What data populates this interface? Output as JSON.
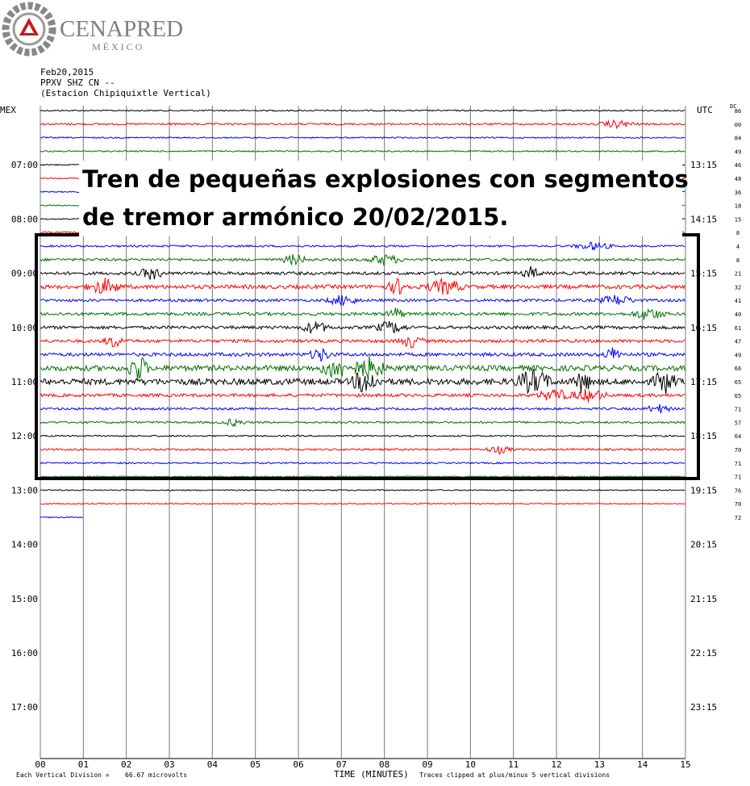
{
  "logo": {
    "name": "CENAPRED",
    "country": "MÉXICO"
  },
  "header": {
    "date": "Feb20,2015",
    "station_code": "PPXV SHZ CN --",
    "station_name": "(Estacion Chipiquixtle Vertical)"
  },
  "annotation": {
    "line1": "Tren de pequeñas explosiones con segmentos",
    "line2": "de tremor armónico 20/02/2015."
  },
  "chart_data": {
    "type": "line",
    "title": "",
    "left_axis_label": "MEX",
    "right_axis_label": "UTC",
    "dc_label": "DC",
    "x_axis_label": "TIME (MINUTES)",
    "xlim": [
      0,
      15
    ],
    "x_ticks": [
      "00",
      "01",
      "02",
      "03",
      "04",
      "05",
      "06",
      "07",
      "08",
      "09",
      "10",
      "11",
      "12",
      "13",
      "14",
      "15"
    ],
    "left_hour_labels": [
      "07:00",
      "08:00",
      "09:00",
      "10:00",
      "11:00",
      "12:00",
      "13:00",
      "14:00",
      "15:00",
      "16:00",
      "17:00"
    ],
    "right_hour_labels": [
      "13:15",
      "14:15",
      "15:15",
      "16:15",
      "17:15",
      "18:15",
      "19:15",
      "20:15",
      "21:15",
      "22:15",
      "23:15"
    ],
    "dc_values": [
      "86",
      "00",
      "84",
      "49",
      "46",
      "48",
      "36",
      "18",
      "15",
      "8",
      "4",
      "8",
      "21",
      "32",
      "41",
      "40",
      "61",
      "47",
      "49",
      "66",
      "65",
      "65",
      "71",
      "57",
      "64",
      "70",
      "71",
      "71",
      "76",
      "70",
      "72"
    ],
    "trace_colors": [
      "#000000",
      "#ff0000",
      "#0000ff",
      "#007000"
    ],
    "rows_per_hour": 4,
    "minutes_per_row": 15,
    "highlight_rows": [
      9,
      27
    ],
    "trace_amplitude_level": [
      0.35,
      0.5,
      0.35,
      0.35,
      0.3,
      0.3,
      0.3,
      0.3,
      0.3,
      0.5,
      0.5,
      0.7,
      0.8,
      1.0,
      0.7,
      0.8,
      0.8,
      0.8,
      0.9,
      1.4,
      1.6,
      0.8,
      0.6,
      0.5,
      0.4,
      0.5,
      0.4,
      0.3,
      0.3,
      0.3,
      0.3
    ],
    "final_row_length_minutes": 1.0,
    "footer_left": "Each Vertical Division =",
    "footer_value": "66.67 microvolts",
    "footer_right": "Traces clipped at plus/minus 5 vertical divisions"
  }
}
